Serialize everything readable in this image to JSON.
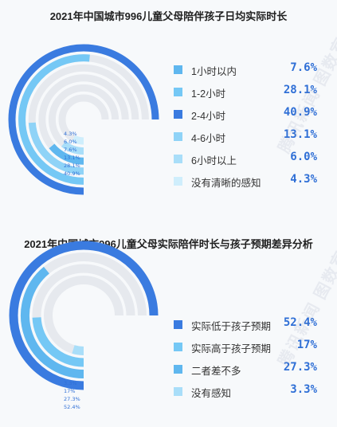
{
  "chart_data": [
    {
      "type": "radial-bar",
      "title": "2021年中国城市996儿童父母陪伴孩子日均实际时长",
      "categories": [
        "1小时以内",
        "1-2小时",
        "2-4小时",
        "4-6小时",
        "6小时以上",
        "没有清晰的感知"
      ],
      "values": [
        7.6,
        28.1,
        40.9,
        13.1,
        6.0,
        4.3
      ],
      "value_labels": [
        "7.6%",
        "28.1%",
        "40.9%",
        "13.1%",
        "6.0%",
        "4.3%"
      ],
      "colors": [
        "#5fb7ef",
        "#75c8f5",
        "#3a7be0",
        "#8fd3f7",
        "#a9def9",
        "#cfeefc"
      ],
      "ring_order": [
        5,
        4,
        0,
        3,
        1,
        2
      ],
      "ring_labels": [
        "4.3%",
        "6.0%",
        "7.6%",
        "13.1%",
        "28.1%",
        "40.9%"
      ]
    },
    {
      "type": "radial-bar",
      "title": "2021年中国城市996儿童父母实际陪伴时长与孩子预期差异分析",
      "categories": [
        "实际低于孩子预期",
        "实际高于孩子预期",
        "二者差不多",
        "没有感知"
      ],
      "values": [
        52.4,
        17,
        27.3,
        3.3
      ],
      "value_labels": [
        "52.4%",
        "17%",
        "27.3%",
        "3.3%"
      ],
      "colors": [
        "#3a7be0",
        "#75c8f5",
        "#5fb7ef",
        "#a9def9"
      ],
      "ring_order": [
        3,
        1,
        2,
        0
      ],
      "ring_labels": [
        "3.3%",
        "17%",
        "27.3%",
        "52.4%"
      ]
    }
  ],
  "watermark": "腾讯新闻 图数室"
}
